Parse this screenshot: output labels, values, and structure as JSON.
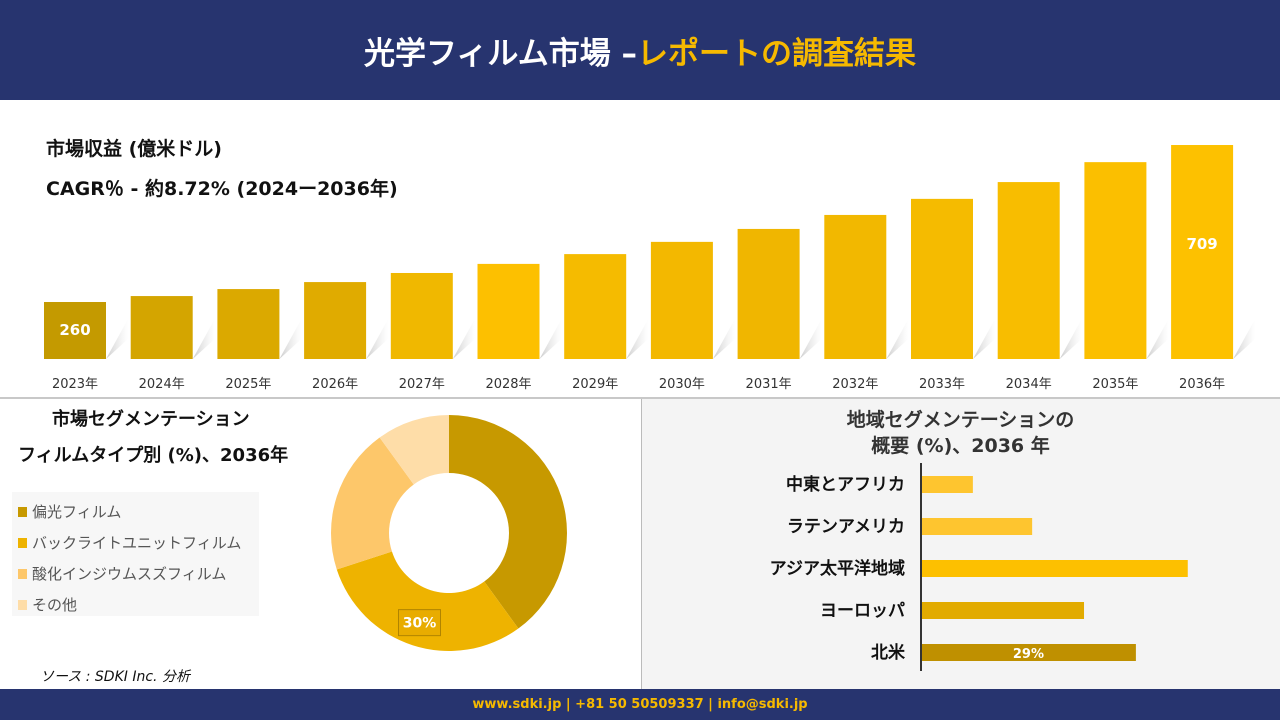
{
  "header": {
    "title_main": "光学フィルム市場 –",
    "title_accent": "レポートの調査結果"
  },
  "colors": {
    "navy": "#27346f",
    "accent": "#f6b900"
  },
  "revenue": {
    "title": "市場収益 (億米ドル)",
    "cagr": "CAGR％ - 約8.72% (2024ー2036年)"
  },
  "film_seg": {
    "title1": "市場セグメンテーション",
    "title2": "フィルムタイプ別 (%)、2036年"
  },
  "region_seg": {
    "title1": "地域セグメンテーションの",
    "title2": "概要 (%)、2036 年"
  },
  "source": "ソース : SDKI Inc. 分析",
  "footer": "www.sdki.jp | +81 50 50509337 | info@sdki.jp",
  "chart_data": [
    {
      "type": "bar",
      "title": "市場収益 (億米ドル)",
      "categories": [
        "2023年",
        "2024年",
        "2025年",
        "2026年",
        "2027年",
        "2028年",
        "2029年",
        "2030年",
        "2031年",
        "2032年",
        "2033年",
        "2034年",
        "2035年",
        "2036年"
      ],
      "values": [
        260,
        277,
        297,
        317,
        343,
        369,
        397,
        432,
        469,
        509,
        555,
        603,
        660,
        709
      ],
      "data_labels": {
        "0": "260",
        "13": "709"
      },
      "colors": [
        "#c49a00",
        "#d4a500",
        "#dba900",
        "#e0ab00",
        "#f0b800",
        "#fdc000",
        "#f5bb00",
        "#f3b800",
        "#f0b600",
        "#f2b800",
        "#f5bb00",
        "#f8bd00",
        "#fbbf00",
        "#fdc100"
      ]
    },
    {
      "type": "pie",
      "title": "フィルムタイプ別 (%)、2036年",
      "labels": [
        "偏光フィルム",
        "バックライトユニットフィルム",
        "酸化インジウムスズフィルム",
        "その他"
      ],
      "values": [
        40,
        30,
        20,
        10
      ],
      "data_labels": {
        "1": "30%"
      },
      "colors": [
        "#c79900",
        "#eeb300",
        "#fdc76a",
        "#fedda8"
      ]
    },
    {
      "type": "bar",
      "orientation": "horizontal",
      "title": "地域セグメンテーションの概要 (%)、2036 年",
      "categories": [
        "中東とアフリカ",
        "ラテンアメリカ",
        "アジア太平洋地域",
        "ヨーロッパ",
        "北米"
      ],
      "values": [
        7,
        15,
        36,
        22,
        29
      ],
      "data_labels": {
        "4": "29%"
      },
      "colors": [
        "#fec52f",
        "#fec52f",
        "#fdc000",
        "#e2ab00",
        "#bf9000"
      ]
    }
  ]
}
